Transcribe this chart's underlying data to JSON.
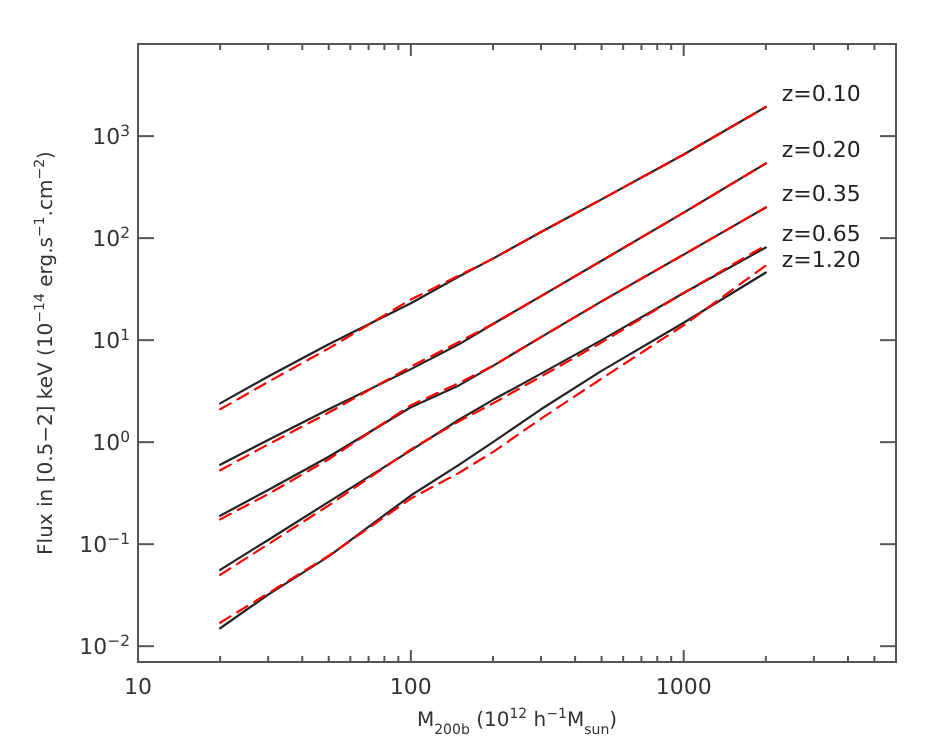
{
  "chart_data": {
    "type": "line",
    "xlabel": "M$_{200b}$ (10$^{12}$ h$^{−1}$M$_{sun}$)",
    "ylabel": "Flux in [0.5−2] keV (10$^{−14}$ erg.s$^{−1}$.cm$^{−2}$)",
    "log": "xy",
    "grid": false,
    "x": [
      20,
      30,
      50,
      100,
      150,
      200,
      300,
      500,
      1000,
      2000
    ],
    "xlim": [
      10,
      6000
    ],
    "ylim": [
      0.007,
      8000
    ],
    "xticks": [
      10,
      {
        "value": 20,
        "label": null
      },
      {
        "value": 30,
        "label": null
      },
      {
        "value": 40,
        "label": null
      },
      {
        "value": 50,
        "label": null
      },
      {
        "value": 60,
        "label": null
      },
      {
        "value": 70,
        "label": null
      },
      {
        "value": 80,
        "label": null
      },
      {
        "value": 90,
        "label": null
      },
      100,
      {
        "value": 200,
        "label": null
      },
      {
        "value": 300,
        "label": null
      },
      {
        "value": 400,
        "label": null
      },
      {
        "value": 500,
        "label": null
      },
      {
        "value": 600,
        "label": null
      },
      {
        "value": 700,
        "label": null
      },
      {
        "value": 800,
        "label": null
      },
      {
        "value": 900,
        "label": null
      },
      1000,
      {
        "value": 2000,
        "label": null
      },
      {
        "value": 3000,
        "label": null
      },
      {
        "value": 4000,
        "label": null
      },
      {
        "value": 5000,
        "label": null
      }
    ],
    "yticks": [
      {
        "value": 0.01,
        "label": "10$^{−2}$"
      },
      {
        "value": 0.1,
        "label": "10$^{−1}$"
      },
      {
        "value": 1,
        "label": "10$^{0}$"
      },
      {
        "value": 10,
        "label": "10$^{1}$"
      },
      {
        "value": 100,
        "label": "10$^{2}$"
      },
      {
        "value": 1000,
        "label": "10$^{3}$"
      }
    ],
    "series": [
      {
        "name": "z=0.10",
        "color": "#222222",
        "line_style": "solid",
        "values": [
          2.4,
          4.4,
          9.1,
          23,
          42,
          63,
          115,
          240,
          660,
          1930
        ]
      },
      {
        "color": "#ff0000",
        "line_style": "dashed",
        "values": [
          2.1,
          3.9,
          8.3,
          25,
          43,
          63,
          115,
          240,
          660,
          1930
        ]
      },
      {
        "name": "z=0.20",
        "color": "#222222",
        "line_style": "solid",
        "values": [
          0.6,
          1.05,
          2.1,
          5.2,
          9.1,
          14.4,
          27,
          60,
          178,
          540
        ]
      },
      {
        "color": "#ff0000",
        "line_style": "dashed",
        "values": [
          0.53,
          0.95,
          1.95,
          5.5,
          9.6,
          14.4,
          27,
          60,
          178,
          540
        ]
      },
      {
        "name": "z=0.35",
        "color": "#222222",
        "line_style": "solid",
        "values": [
          0.19,
          0.34,
          0.72,
          2.2,
          3.6,
          5.6,
          10.7,
          24,
          69,
          200
        ]
      },
      {
        "color": "#ff0000",
        "line_style": "dashed",
        "values": [
          0.175,
          0.31,
          0.68,
          2.3,
          3.8,
          5.6,
          10.7,
          24,
          69,
          200
        ]
      },
      {
        "name": "z=0.65",
        "color": "#222222",
        "line_style": "solid",
        "values": [
          0.056,
          0.11,
          0.26,
          0.83,
          1.66,
          2.6,
          4.7,
          10,
          29,
          81
        ]
      },
      {
        "color": "#ff0000",
        "line_style": "dashed",
        "values": [
          0.05,
          0.1,
          0.24,
          0.85,
          1.6,
          2.4,
          4.4,
          9.5,
          29,
          85
        ]
      },
      {
        "name": "z=1.20",
        "color": "#222222",
        "line_style": "solid",
        "values": [
          0.015,
          0.032,
          0.076,
          0.3,
          0.6,
          1.0,
          2.1,
          5.0,
          14.8,
          46
        ]
      },
      {
        "color": "#ff0000",
        "line_style": "dashed",
        "values": [
          0.017,
          0.033,
          0.077,
          0.28,
          0.5,
          0.8,
          1.7,
          4.2,
          14,
          54
        ]
      }
    ]
  }
}
